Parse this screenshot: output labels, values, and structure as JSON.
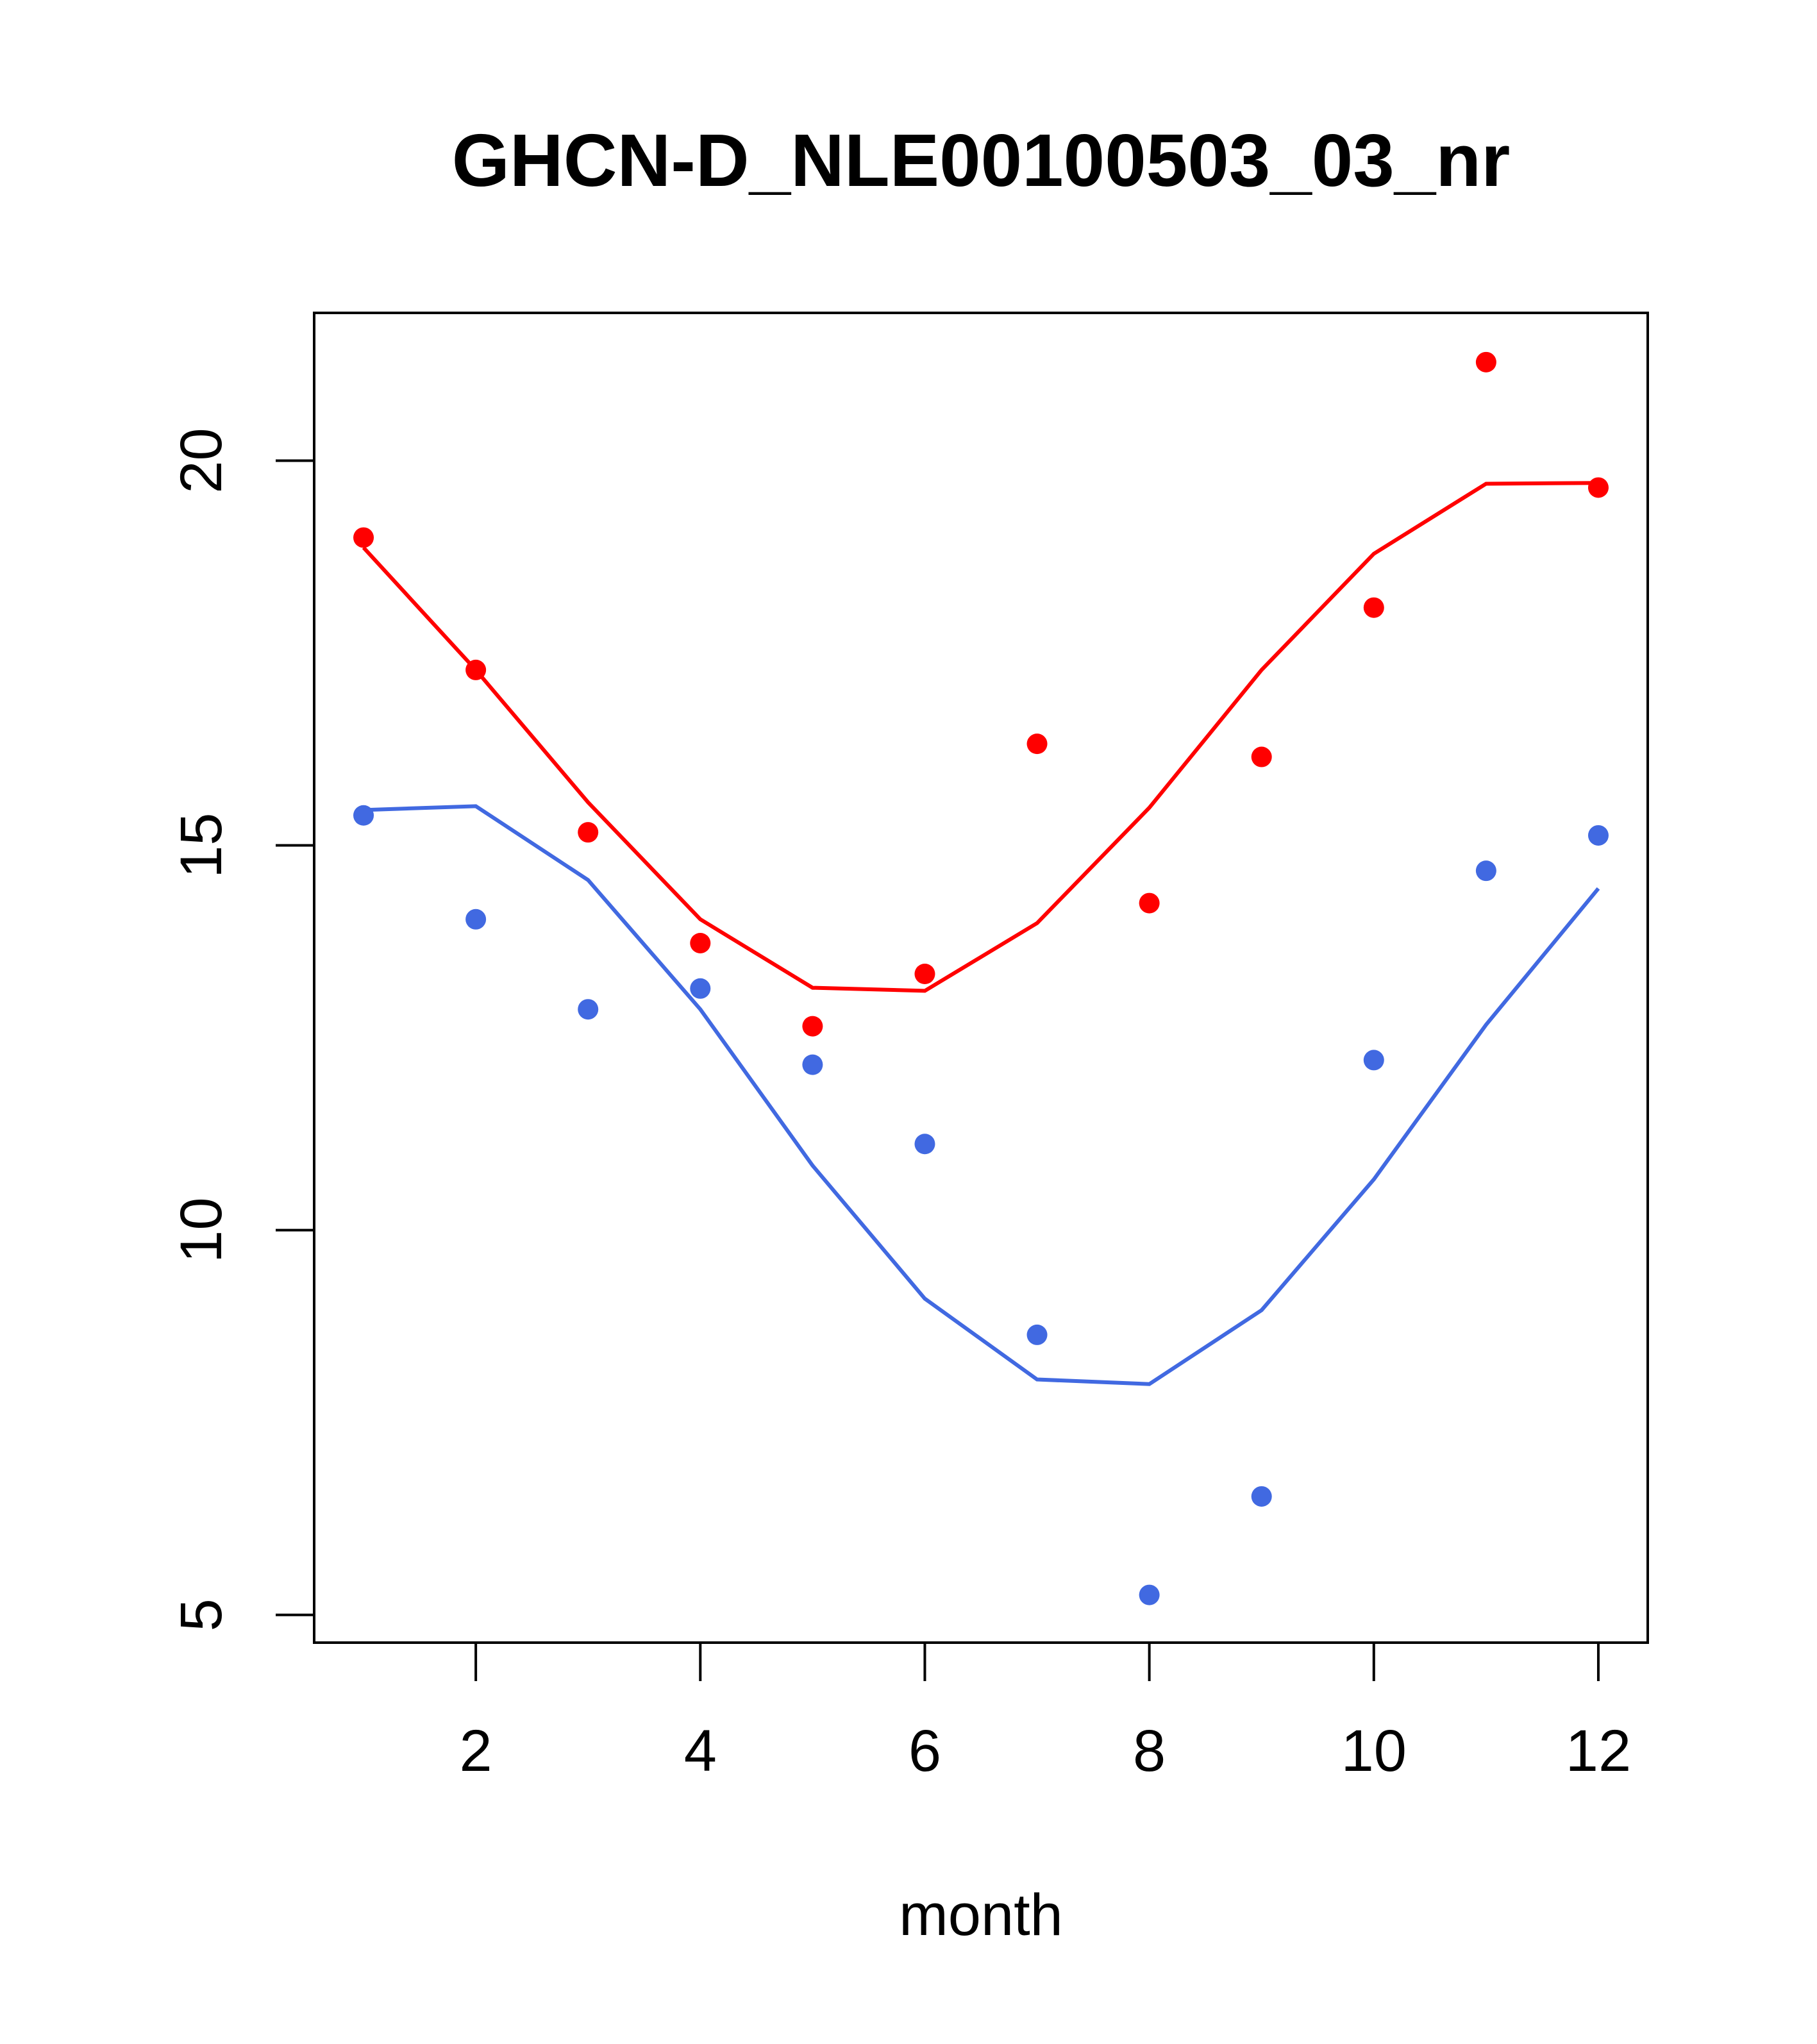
{
  "chart_data": {
    "type": "scatter",
    "title": "GHCN-D_NLE00100503_03_nr",
    "xlabel": "month",
    "ylabel": "",
    "xlim": [
      0.56,
      12.44
    ],
    "ylim": [
      4.64,
      21.92
    ],
    "xticks": [
      2,
      4,
      6,
      8,
      10,
      12
    ],
    "xtick_labels": [
      "2",
      "4",
      "6",
      "8",
      "10",
      "12"
    ],
    "yticks": [
      5,
      10,
      15,
      20
    ],
    "ytick_labels": [
      "5",
      "10",
      "15",
      "20"
    ],
    "grid": false,
    "x": [
      1,
      2,
      3,
      4,
      5,
      6,
      7,
      8,
      9,
      10,
      11,
      12
    ],
    "series": [
      {
        "name": "red points",
        "kind": "points",
        "color": "#ff0000",
        "values": [
          19.0,
          17.28,
          15.17,
          13.73,
          12.65,
          13.33,
          16.32,
          14.25,
          16.15,
          18.09,
          21.28,
          19.65
        ]
      },
      {
        "name": "red line",
        "kind": "line",
        "color": "#ff0000",
        "values": [
          18.87,
          17.28,
          15.56,
          14.04,
          13.15,
          13.11,
          13.99,
          15.49,
          17.28,
          18.79,
          19.7,
          19.71
        ]
      },
      {
        "name": "blue points",
        "kind": "points",
        "color": "#4169e1",
        "values": [
          15.39,
          14.04,
          12.87,
          13.14,
          12.15,
          11.12,
          8.64,
          5.26,
          6.54,
          12.21,
          14.67,
          15.13
        ]
      },
      {
        "name": "blue line",
        "kind": "line",
        "color": "#4169e1",
        "values": [
          15.46,
          15.51,
          14.55,
          12.87,
          10.84,
          9.11,
          8.06,
          8.0,
          8.96,
          10.66,
          12.67,
          14.44
        ]
      }
    ]
  }
}
